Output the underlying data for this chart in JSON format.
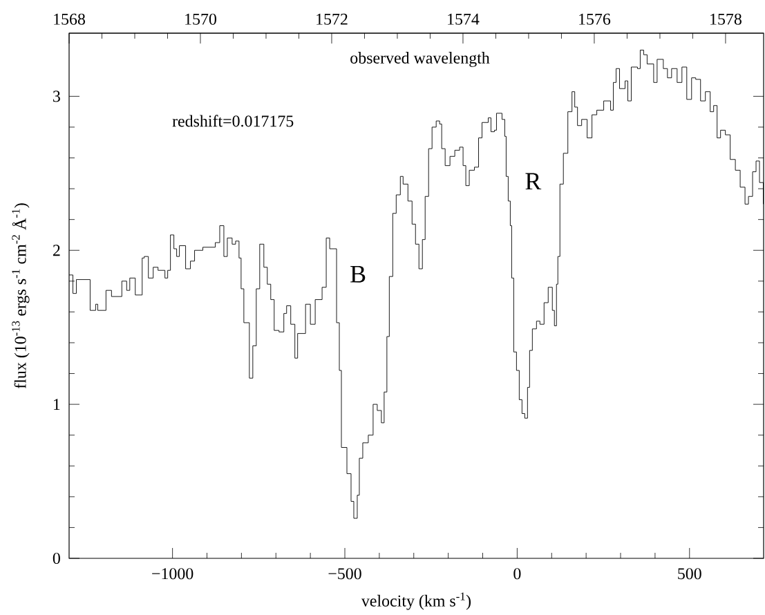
{
  "chart_data": {
    "type": "step",
    "color": "#000000",
    "xlabel": "velocity (km s$^{-1}$)",
    "ylabel": "flux (10$^{-13}$ ergs s$^{-1}$ cm$^{-2}$ Å$^{-1}$)",
    "x2label": "observed wavelength",
    "annotations": [
      "redshift=0.017175",
      "B",
      "R"
    ],
    "xlim": [
      -1300,
      715
    ],
    "ylim": [
      0,
      3.41
    ],
    "x2lim": [
      1568,
      1578.58
    ],
    "xticks": [
      {
        "value": -1000,
        "label": "−1000"
      },
      {
        "value": -500,
        "label": "−500"
      },
      0,
      500
    ],
    "yticks": [
      0,
      1,
      2,
      3
    ],
    "x2ticks": [
      1568,
      1570,
      1572,
      1574,
      1576,
      1578
    ],
    "x": [
      -1300,
      -1289,
      -1279,
      -1259,
      -1239,
      -1223,
      -1217,
      -1193,
      -1177,
      -1147,
      -1133,
      -1124,
      -1108,
      -1088,
      -1082,
      -1070,
      -1056,
      -1042,
      -1022,
      -1014,
      -1006,
      -996,
      -988,
      -980,
      -962,
      -948,
      -936,
      -912,
      -886,
      -876,
      -863,
      -851,
      -841,
      -827,
      -817,
      -807,
      -801,
      -793,
      -777,
      -767,
      -757,
      -747,
      -735,
      -725,
      -715,
      -705,
      -691,
      -677,
      -669,
      -657,
      -645,
      -637,
      -614,
      -600,
      -586,
      -566,
      -554,
      -544,
      -524,
      -516,
      -510,
      -494,
      -482,
      -474,
      -464,
      -458,
      -448,
      -432,
      -418,
      -406,
      -394,
      -386,
      -378,
      -371,
      -361,
      -351,
      -339,
      -331,
      -317,
      -305,
      -295,
      -285,
      -275,
      -267,
      -257,
      -247,
      -235,
      -225,
      -219,
      -209,
      -195,
      -181,
      -167,
      -157,
      -149,
      -139,
      -124,
      -112,
      -102,
      -84,
      -76,
      -66,
      -60,
      -44,
      -36,
      -32,
      -26,
      -20,
      -16,
      -10,
      -2,
      6,
      14,
      22,
      30,
      36,
      44,
      56,
      66,
      78,
      90,
      102,
      108,
      114,
      118,
      124,
      134,
      147,
      159,
      167,
      175,
      187,
      203,
      217,
      231,
      251,
      271,
      279,
      287,
      297,
      313,
      321,
      331,
      349,
      357,
      367,
      377,
      396,
      406,
      424,
      436,
      448,
      464,
      478,
      492,
      506,
      518,
      532,
      546,
      560,
      570,
      580,
      590,
      604,
      618,
      633,
      647,
      661,
      671,
      683,
      693,
      703,
      714
    ],
    "values": [
      1.84,
      1.72,
      1.81,
      1.81,
      1.61,
      1.65,
      1.61,
      1.74,
      1.7,
      1.8,
      1.74,
      1.82,
      1.71,
      1.95,
      1.96,
      1.82,
      1.89,
      1.87,
      1.82,
      1.87,
      2.1,
      2.01,
      1.96,
      2.03,
      1.88,
      1.93,
      2.0,
      2.02,
      2.02,
      2.05,
      2.16,
      1.96,
      2.08,
      2.04,
      2.06,
      1.95,
      1.75,
      1.53,
      1.17,
      1.38,
      1.75,
      2.04,
      1.89,
      1.78,
      1.68,
      1.48,
      1.47,
      1.59,
      1.64,
      1.52,
      1.3,
      1.46,
      1.65,
      1.52,
      1.68,
      1.76,
      2.08,
      2.01,
      1.53,
      1.22,
      0.72,
      0.55,
      0.37,
      0.26,
      0.41,
      0.65,
      0.75,
      0.8,
      1.0,
      0.96,
      0.88,
      1.08,
      1.44,
      1.83,
      2.24,
      2.36,
      2.48,
      2.43,
      2.32,
      2.17,
      2.04,
      1.88,
      2.07,
      2.35,
      2.66,
      2.8,
      2.84,
      2.82,
      2.66,
      2.55,
      2.61,
      2.65,
      2.67,
      2.55,
      2.42,
      2.52,
      2.54,
      2.73,
      2.83,
      2.86,
      2.77,
      2.78,
      2.89,
      2.85,
      2.74,
      2.48,
      2.32,
      2.16,
      1.82,
      1.34,
      1.22,
      1.03,
      0.94,
      0.91,
      1.11,
      1.35,
      1.49,
      1.54,
      1.52,
      1.66,
      1.76,
      1.61,
      1.51,
      1.78,
      1.96,
      2.43,
      2.63,
      2.9,
      3.03,
      2.93,
      2.81,
      2.85,
      2.73,
      2.88,
      2.91,
      2.97,
      2.91,
      3.09,
      3.18,
      3.05,
      3.1,
      2.97,
      3.19,
      3.18,
      3.3,
      3.27,
      3.21,
      3.09,
      3.24,
      3.18,
      3.12,
      3.18,
      3.09,
      3.19,
      2.98,
      3.12,
      3.11,
      2.97,
      3.03,
      2.9,
      2.94,
      2.73,
      2.78,
      2.75,
      2.59,
      2.52,
      2.41,
      2.3,
      2.35,
      2.51,
      2.58,
      2.44,
      2.3
    ]
  }
}
